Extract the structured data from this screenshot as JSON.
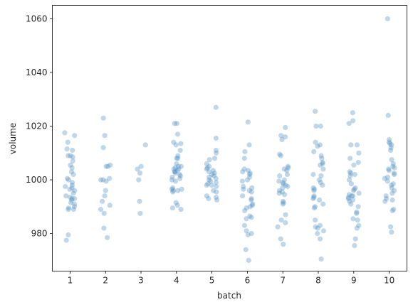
{
  "chart_data": {
    "type": "scatter",
    "xlabel": "batch",
    "ylabel": "volume",
    "categories": [
      "1",
      "2",
      "3",
      "4",
      "5",
      "6",
      "7",
      "8",
      "9",
      "10"
    ],
    "yticks": [
      980,
      1000,
      1020,
      1040,
      1060
    ],
    "ylim": [
      966,
      1065
    ],
    "grid": false,
    "color": "#4a8bbf",
    "points": [
      [
        0,
        1017.5
      ],
      [
        0,
        1016.5
      ],
      [
        0,
        1014
      ],
      [
        0,
        1011.5
      ],
      [
        0,
        1011
      ],
      [
        0,
        1009
      ],
      [
        0,
        1009
      ],
      [
        0,
        1008.5
      ],
      [
        0,
        1007
      ],
      [
        0,
        1005.5
      ],
      [
        0,
        1004.5
      ],
      [
        0,
        1003
      ],
      [
        0,
        1002
      ],
      [
        0,
        1000.5
      ],
      [
        0,
        1000
      ],
      [
        0,
        999
      ],
      [
        0,
        998
      ],
      [
        0,
        997.5
      ],
      [
        0,
        997
      ],
      [
        0,
        996.5
      ],
      [
        0,
        996
      ],
      [
        0,
        995
      ],
      [
        0,
        994
      ],
      [
        0,
        993.5
      ],
      [
        0,
        993
      ],
      [
        0,
        993
      ],
      [
        0,
        992.5
      ],
      [
        0,
        991.5
      ],
      [
        0,
        991
      ],
      [
        0,
        990
      ],
      [
        0,
        989.5
      ],
      [
        0,
        989
      ],
      [
        0,
        989
      ],
      [
        0,
        979.5
      ],
      [
        0,
        977.5
      ],
      [
        1,
        1023
      ],
      [
        1,
        1016.5
      ],
      [
        1,
        1012
      ],
      [
        1,
        1005.5
      ],
      [
        1,
        1005
      ],
      [
        1,
        1005
      ],
      [
        1,
        1000.5
      ],
      [
        1,
        1000
      ],
      [
        1,
        1000
      ],
      [
        1,
        999.5
      ],
      [
        1,
        996
      ],
      [
        1,
        994
      ],
      [
        1,
        992
      ],
      [
        1,
        990.5
      ],
      [
        1,
        989
      ],
      [
        1,
        987.5
      ],
      [
        1,
        982
      ],
      [
        1,
        978.5
      ],
      [
        2,
        1013
      ],
      [
        2,
        1005
      ],
      [
        2,
        1004
      ],
      [
        2,
        1002.5
      ],
      [
        2,
        1000
      ],
      [
        2,
        992
      ],
      [
        2,
        987.5
      ],
      [
        3,
        1021
      ],
      [
        3,
        1021
      ],
      [
        3,
        1017
      ],
      [
        3,
        1014
      ],
      [
        3,
        1013.5
      ],
      [
        3,
        1013
      ],
      [
        3,
        1011
      ],
      [
        3,
        1009
      ],
      [
        3,
        1008
      ],
      [
        3,
        1008
      ],
      [
        3,
        1006
      ],
      [
        3,
        1005
      ],
      [
        3,
        1005
      ],
      [
        3,
        1004.5
      ],
      [
        3,
        1004
      ],
      [
        3,
        1004
      ],
      [
        3,
        1003.5
      ],
      [
        3,
        1003
      ],
      [
        3,
        1003
      ],
      [
        3,
        1002.5
      ],
      [
        3,
        1002
      ],
      [
        3,
        1001.5
      ],
      [
        3,
        1001
      ],
      [
        3,
        1000.5
      ],
      [
        3,
        1000
      ],
      [
        3,
        999.5
      ],
      [
        3,
        997
      ],
      [
        3,
        996.5
      ],
      [
        3,
        996.5
      ],
      [
        3,
        996
      ],
      [
        3,
        996
      ],
      [
        3,
        995.5
      ],
      [
        3,
        991.5
      ],
      [
        3,
        990.5
      ],
      [
        3,
        989.5
      ],
      [
        3,
        989
      ],
      [
        4,
        1027
      ],
      [
        4,
        1015.5
      ],
      [
        4,
        1011
      ],
      [
        4,
        1010
      ],
      [
        4,
        1008
      ],
      [
        4,
        1007.5
      ],
      [
        4,
        1006
      ],
      [
        4,
        1005
      ],
      [
        4,
        1004.5
      ],
      [
        4,
        1004
      ],
      [
        4,
        1003.5
      ],
      [
        4,
        1003
      ],
      [
        4,
        1002.5
      ],
      [
        4,
        1002
      ],
      [
        4,
        1001.5
      ],
      [
        4,
        1001
      ],
      [
        4,
        1000.5
      ],
      [
        4,
        1000
      ],
      [
        4,
        999.5
      ],
      [
        4,
        999
      ],
      [
        4,
        998.5
      ],
      [
        4,
        998
      ],
      [
        4,
        998
      ],
      [
        4,
        997.5
      ],
      [
        4,
        996
      ],
      [
        4,
        995.5
      ],
      [
        4,
        994
      ],
      [
        4,
        993.5
      ],
      [
        4,
        993
      ],
      [
        4,
        992.5
      ],
      [
        5,
        1021.5
      ],
      [
        5,
        1013
      ],
      [
        5,
        1010.5
      ],
      [
        5,
        1008
      ],
      [
        5,
        1004
      ],
      [
        5,
        1003.5
      ],
      [
        5,
        1003
      ],
      [
        5,
        1002.5
      ],
      [
        5,
        1002
      ],
      [
        5,
        1001
      ],
      [
        5,
        1000
      ],
      [
        5,
        999.5
      ],
      [
        5,
        997.5
      ],
      [
        5,
        997
      ],
      [
        5,
        996.5
      ],
      [
        5,
        996
      ],
      [
        5,
        995.5
      ],
      [
        5,
        994
      ],
      [
        5,
        993
      ],
      [
        5,
        992.5
      ],
      [
        5,
        991
      ],
      [
        5,
        990.5
      ],
      [
        5,
        990
      ],
      [
        5,
        989.5
      ],
      [
        5,
        988.5
      ],
      [
        5,
        986.5
      ],
      [
        5,
        986
      ],
      [
        5,
        985.5
      ],
      [
        5,
        983
      ],
      [
        5,
        981
      ],
      [
        5,
        980
      ],
      [
        5,
        979.5
      ],
      [
        5,
        974
      ],
      [
        5,
        970
      ],
      [
        6,
        1019.5
      ],
      [
        6,
        1016.5
      ],
      [
        6,
        1016
      ],
      [
        6,
        1015
      ],
      [
        6,
        1009.5
      ],
      [
        6,
        1009
      ],
      [
        6,
        1005
      ],
      [
        6,
        1004.5
      ],
      [
        6,
        1004
      ],
      [
        6,
        1003.5
      ],
      [
        6,
        1002
      ],
      [
        6,
        1001.5
      ],
      [
        6,
        1000
      ],
      [
        6,
        999.5
      ],
      [
        6,
        999
      ],
      [
        6,
        998.5
      ],
      [
        6,
        998
      ],
      [
        6,
        997.5
      ],
      [
        6,
        997
      ],
      [
        6,
        996
      ],
      [
        6,
        995.5
      ],
      [
        6,
        995
      ],
      [
        6,
        994.5
      ],
      [
        6,
        992
      ],
      [
        6,
        991.5
      ],
      [
        6,
        991
      ],
      [
        6,
        987
      ],
      [
        6,
        985
      ],
      [
        6,
        984
      ],
      [
        6,
        982.5
      ],
      [
        6,
        978
      ],
      [
        6,
        976
      ],
      [
        7,
        1025.5
      ],
      [
        7,
        1020
      ],
      [
        7,
        1020
      ],
      [
        7,
        1014
      ],
      [
        7,
        1013
      ],
      [
        7,
        1012.5
      ],
      [
        7,
        1010.5
      ],
      [
        7,
        1009
      ],
      [
        7,
        1008
      ],
      [
        7,
        1006.5
      ],
      [
        7,
        1006
      ],
      [
        7,
        1005.5
      ],
      [
        7,
        1004
      ],
      [
        7,
        1002
      ],
      [
        7,
        1001.5
      ],
      [
        7,
        1000
      ],
      [
        7,
        999
      ],
      [
        7,
        998
      ],
      [
        7,
        997
      ],
      [
        7,
        996.5
      ],
      [
        7,
        996
      ],
      [
        7,
        994
      ],
      [
        7,
        993.5
      ],
      [
        7,
        993
      ],
      [
        7,
        992.5
      ],
      [
        7,
        991
      ],
      [
        7,
        990
      ],
      [
        7,
        989.5
      ],
      [
        7,
        985
      ],
      [
        7,
        983
      ],
      [
        7,
        982.5
      ],
      [
        7,
        982
      ],
      [
        7,
        981
      ],
      [
        7,
        980
      ],
      [
        7,
        978
      ],
      [
        7,
        970.5
      ],
      [
        8,
        1025
      ],
      [
        8,
        1022
      ],
      [
        8,
        1021
      ],
      [
        8,
        1013
      ],
      [
        8,
        1013
      ],
      [
        8,
        1010
      ],
      [
        8,
        1008
      ],
      [
        8,
        1006.5
      ],
      [
        8,
        1005.5
      ],
      [
        8,
        1003
      ],
      [
        8,
        1002.5
      ],
      [
        8,
        1002
      ],
      [
        8,
        1001.5
      ],
      [
        8,
        1000
      ],
      [
        8,
        998.5
      ],
      [
        8,
        997
      ],
      [
        8,
        996.5
      ],
      [
        8,
        996
      ],
      [
        8,
        995
      ],
      [
        8,
        994.5
      ],
      [
        8,
        994
      ],
      [
        8,
        994
      ],
      [
        8,
        993.5
      ],
      [
        8,
        993
      ],
      [
        8,
        992.5
      ],
      [
        8,
        992
      ],
      [
        8,
        991
      ],
      [
        8,
        990
      ],
      [
        8,
        988
      ],
      [
        8,
        987.5
      ],
      [
        8,
        985.5
      ],
      [
        8,
        985
      ],
      [
        8,
        983
      ],
      [
        8,
        982
      ],
      [
        8,
        978
      ],
      [
        8,
        975.5
      ],
      [
        9,
        1060
      ],
      [
        9,
        1024
      ],
      [
        9,
        1015
      ],
      [
        9,
        1014
      ],
      [
        9,
        1013.5
      ],
      [
        9,
        1013
      ],
      [
        9,
        1012
      ],
      [
        9,
        1011
      ],
      [
        9,
        1007.5
      ],
      [
        9,
        1006
      ],
      [
        9,
        1005
      ],
      [
        9,
        1004.5
      ],
      [
        9,
        1004
      ],
      [
        9,
        1003.5
      ],
      [
        9,
        1002.5
      ],
      [
        9,
        1002
      ],
      [
        9,
        1001
      ],
      [
        9,
        1000.5
      ],
      [
        9,
        999.5
      ],
      [
        9,
        998.5
      ],
      [
        9,
        998
      ],
      [
        9,
        997
      ],
      [
        9,
        996
      ],
      [
        9,
        995
      ],
      [
        9,
        994
      ],
      [
        9,
        993
      ],
      [
        9,
        992.5
      ],
      [
        9,
        992
      ],
      [
        9,
        989
      ],
      [
        9,
        988.5
      ],
      [
        9,
        982.5
      ],
      [
        9,
        980.5
      ]
    ]
  }
}
